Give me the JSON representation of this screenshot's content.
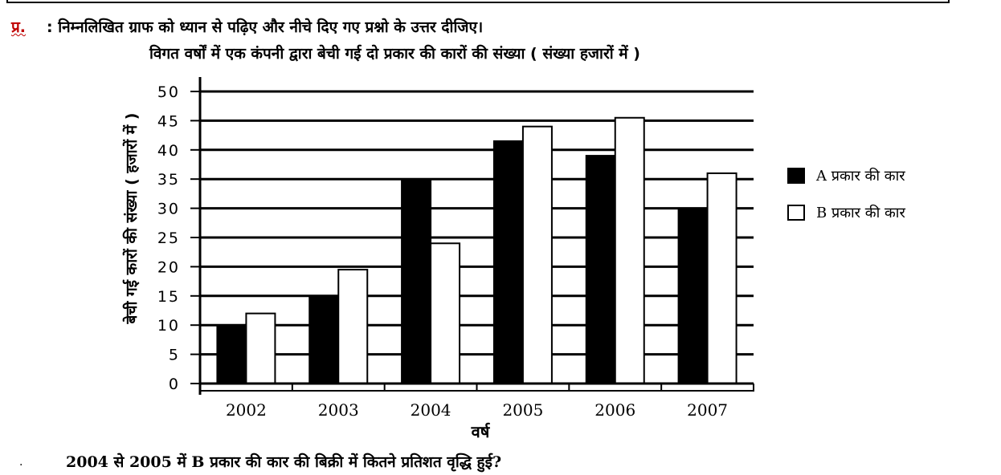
{
  "header": {
    "prefix": "प्र.",
    "instruction": ": निम्नलिखित ग्राफ को ध्यान से पढ़िए और नीचे दिए गए प्रश्नो के उत्तर दीजिए।"
  },
  "chart_data": {
    "type": "bar",
    "title": "विगत वर्षों में एक कंपनी द्वारा बेची गई दो प्रकार की कारों की संख्या ( संख्या हजारों में )",
    "xlabel": "वर्ष",
    "ylabel": "बेची गई कारों की संख्या ( हजारों में )",
    "categories": [
      "2002",
      "2003",
      "2004",
      "2005",
      "2006",
      "2007"
    ],
    "series": [
      {
        "name": "A प्रकार की कार",
        "color": "#000000",
        "values": [
          10,
          15,
          35,
          41.5,
          39,
          30
        ]
      },
      {
        "name": "B प्रकार की कार",
        "color": "#ffffff",
        "values": [
          12,
          19.5,
          24,
          44,
          45.5,
          36
        ]
      }
    ],
    "ylim": [
      0,
      50
    ],
    "yticks": [
      "0",
      "5",
      "10",
      "15",
      "20",
      "25",
      "30",
      "35",
      "40",
      "45",
      "50"
    ],
    "grid": true,
    "legend_position": "right"
  },
  "question": {
    "bullet": ".",
    "text": "2004 से 2005 में B प्रकार की कार की बिक्री में कितने प्रतिशत वृद्धि हुई?"
  }
}
